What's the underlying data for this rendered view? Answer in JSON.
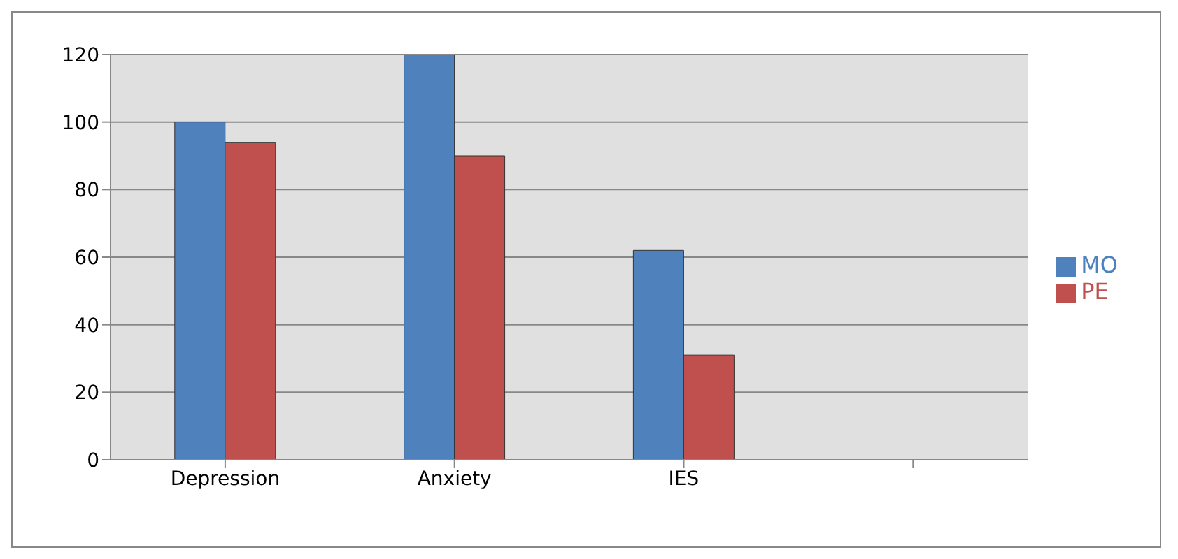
{
  "chart_data": {
    "type": "bar",
    "categories": [
      "Depression",
      "Anxiety",
      "IES",
      null
    ],
    "series": [
      {
        "name": "MO",
        "color": "#4f81bd",
        "values": [
          100,
          120,
          62,
          null
        ]
      },
      {
        "name": "PE",
        "color": "#c0504d",
        "values": [
          94,
          90,
          31,
          null
        ]
      }
    ],
    "ylim": [
      0,
      120
    ],
    "yticks": [
      0,
      20,
      40,
      60,
      80,
      100,
      120
    ],
    "grid": "y",
    "legend": "right"
  }
}
